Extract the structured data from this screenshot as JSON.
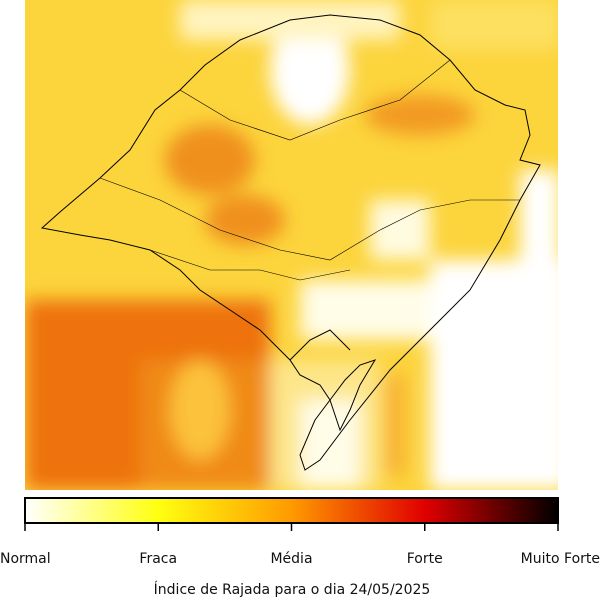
{
  "colorbar": {
    "labels": [
      "Normal",
      "Fraca",
      "Média",
      "Forte",
      "Muito Forte"
    ]
  },
  "caption": "Índice de Rajada para o dia 24/05/2025"
}
